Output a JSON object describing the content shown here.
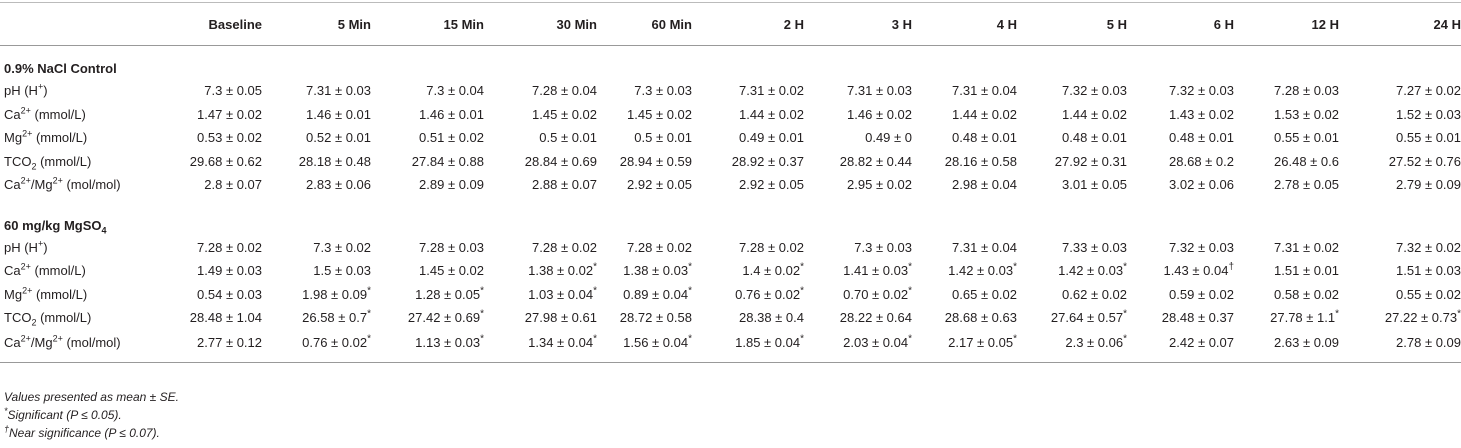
{
  "table": {
    "columns": [
      "",
      "Baseline",
      "5 Min",
      "15 Min",
      "30 Min",
      "60 Min",
      "2 H",
      "3 H",
      "4 H",
      "5 H",
      "6 H",
      "12 H",
      "24 H"
    ],
    "sections": [
      {
        "title": [
          {
            "text": "0.9% NaCl Control"
          }
        ],
        "rows": [
          {
            "label": [
              {
                "text": "pH (H"
              },
              {
                "sup": "+"
              },
              {
                "text": ")"
              }
            ],
            "cells": [
              "7.3 ± 0.05",
              "7.31 ± 0.03",
              "7.3 ± 0.04",
              "7.28 ± 0.04",
              "7.3 ± 0.03",
              "7.31 ± 0.02",
              "7.31 ± 0.03",
              "7.31 ± 0.04",
              "7.32 ± 0.03",
              "7.32 ± 0.03",
              "7.28 ± 0.03",
              "7.27 ± 0.02"
            ]
          },
          {
            "label": [
              {
                "text": "Ca"
              },
              {
                "sup": "2+"
              },
              {
                "text": " (mmol/L)"
              }
            ],
            "cells": [
              "1.47 ± 0.02",
              "1.46 ± 0.01",
              "1.46 ± 0.01",
              "1.45 ± 0.02",
              "1.45 ± 0.02",
              "1.44 ± 0.02",
              "1.46 ± 0.02",
              "1.44 ± 0.02",
              "1.44 ± 0.02",
              "1.43 ± 0.02",
              "1.53 ± 0.02",
              "1.52 ± 0.03"
            ]
          },
          {
            "label": [
              {
                "text": "Mg"
              },
              {
                "sup": "2+"
              },
              {
                "text": " (mmol/L)"
              }
            ],
            "cells": [
              "0.53 ± 0.02",
              "0.52 ± 0.01",
              "0.51 ± 0.02",
              "0.5 ± 0.01",
              "0.5 ± 0.01",
              "0.49 ± 0.01",
              "0.49 ± 0",
              "0.48 ± 0.01",
              "0.48 ± 0.01",
              "0.48 ± 0.01",
              "0.55 ± 0.01",
              "0.55 ± 0.01"
            ]
          },
          {
            "label": [
              {
                "text": "TCO"
              },
              {
                "sub": "2"
              },
              {
                "text": " (mmol/L)"
              }
            ],
            "cells": [
              "29.68 ± 0.62",
              "28.18 ± 0.48",
              "27.84 ± 0.88",
              "28.84 ± 0.69",
              "28.94 ± 0.59",
              "28.92 ± 0.37",
              "28.82 ± 0.44",
              "28.16 ± 0.58",
              "27.92 ± 0.31",
              "28.68 ± 0.2",
              "26.48 ± 0.6",
              "27.52 ± 0.76"
            ]
          },
          {
            "label": [
              {
                "text": "Ca"
              },
              {
                "sup": "2+"
              },
              {
                "text": "/Mg"
              },
              {
                "sup": "2+"
              },
              {
                "text": " (mol/mol)"
              }
            ],
            "cells": [
              "2.8 ± 0.07",
              "2.83 ± 0.06",
              "2.89 ± 0.09",
              "2.88 ± 0.07",
              "2.92 ± 0.05",
              "2.92 ± 0.05",
              "2.95 ± 0.02",
              "2.98 ± 0.04",
              "3.01 ± 0.05",
              "3.02 ± 0.06",
              "2.78 ± 0.05",
              "2.79 ± 0.09"
            ]
          }
        ]
      },
      {
        "title": [
          {
            "text": "60 mg/kg MgSO"
          },
          {
            "sub": "4"
          }
        ],
        "rows": [
          {
            "label": [
              {
                "text": "pH (H"
              },
              {
                "sup": "+"
              },
              {
                "text": ")"
              }
            ],
            "cells": [
              "7.28 ± 0.02",
              "7.3 ± 0.02",
              "7.28 ± 0.03",
              "7.28 ± 0.02",
              "7.28 ± 0.02",
              "7.28 ± 0.02",
              "7.3 ± 0.03",
              "7.31 ± 0.04",
              "7.33 ± 0.03",
              "7.32 ± 0.03",
              "7.31 ± 0.02",
              "7.32 ± 0.02"
            ]
          },
          {
            "label": [
              {
                "text": "Ca"
              },
              {
                "sup": "2+"
              },
              {
                "text": " (mmol/L)"
              }
            ],
            "cells": [
              "1.49 ± 0.03",
              "1.5 ± 0.03",
              "1.45 ± 0.02",
              {
                "text": "1.38 ± 0.02",
                "mark": "*"
              },
              {
                "text": "1.38 ± 0.03",
                "mark": "*"
              },
              {
                "text": "1.4 ± 0.02",
                "mark": "*"
              },
              {
                "text": "1.41 ± 0.03",
                "mark": "*"
              },
              {
                "text": "1.42 ± 0.03",
                "mark": "*"
              },
              {
                "text": "1.42 ± 0.03",
                "mark": "*"
              },
              {
                "text": "1.43 ± 0.04",
                "mark": "†"
              },
              "1.51 ± 0.01",
              "1.51 ± 0.03"
            ]
          },
          {
            "label": [
              {
                "text": "Mg"
              },
              {
                "sup": "2+"
              },
              {
                "text": " (mmol/L)"
              }
            ],
            "cells": [
              "0.54 ± 0.03",
              {
                "text": "1.98 ± 0.09",
                "mark": "*"
              },
              {
                "text": "1.28 ± 0.05",
                "mark": "*"
              },
              {
                "text": "1.03 ± 0.04",
                "mark": "*"
              },
              {
                "text": "0.89 ± 0.04",
                "mark": "*"
              },
              {
                "text": "0.76 ± 0.02",
                "mark": "*"
              },
              {
                "text": "0.70 ± 0.02",
                "mark": "*"
              },
              "0.65 ± 0.02",
              "0.62 ± 0.02",
              "0.59 ± 0.02",
              "0.58 ± 0.02",
              "0.55 ± 0.02"
            ]
          },
          {
            "label": [
              {
                "text": "TCO"
              },
              {
                "sub": "2"
              },
              {
                "text": " (mmol/L)"
              }
            ],
            "cells": [
              "28.48 ± 1.04",
              {
                "text": "26.58 ± 0.7",
                "mark": "*"
              },
              {
                "text": "27.42 ± 0.69",
                "mark": "*"
              },
              "27.98 ± 0.61",
              "28.72 ± 0.58",
              "28.38 ± 0.4",
              "28.22 ± 0.64",
              "28.68 ± 0.63",
              {
                "text": "27.64 ± 0.57",
                "mark": "*"
              },
              "28.48 ± 0.37",
              {
                "text": "27.78 ± 1.1",
                "mark": "*"
              },
              {
                "text": "27.22 ± 0.73",
                "mark": "*"
              }
            ]
          },
          {
            "label": [
              {
                "text": "Ca"
              },
              {
                "sup": "2+"
              },
              {
                "text": "/Mg"
              },
              {
                "sup": "2+"
              },
              {
                "text": " (mol/mol)"
              }
            ],
            "cells": [
              "2.77 ± 0.12",
              {
                "text": "0.76 ± 0.02",
                "mark": "*"
              },
              {
                "text": "1.13 ± 0.03",
                "mark": "*"
              },
              {
                "text": "1.34 ± 0.04",
                "mark": "*"
              },
              {
                "text": "1.56 ± 0.04",
                "mark": "*"
              },
              {
                "text": "1.85 ± 0.04",
                "mark": "*"
              },
              {
                "text": "2.03 ± 0.04",
                "mark": "*"
              },
              {
                "text": "2.17 ± 0.05",
                "mark": "*"
              },
              {
                "text": "2.3 ± 0.06",
                "mark": "*"
              },
              "2.42 ± 0.07",
              "2.63 ± 0.09",
              "2.78 ± 0.09"
            ]
          }
        ]
      }
    ]
  },
  "footnotes": [
    {
      "text": "Values presented as mean ± SE."
    },
    {
      "mark": "*",
      "text": "Significant (P ≤ 0.05)."
    },
    {
      "mark": "†",
      "text": "Near significance (P ≤ 0.07)."
    }
  ]
}
